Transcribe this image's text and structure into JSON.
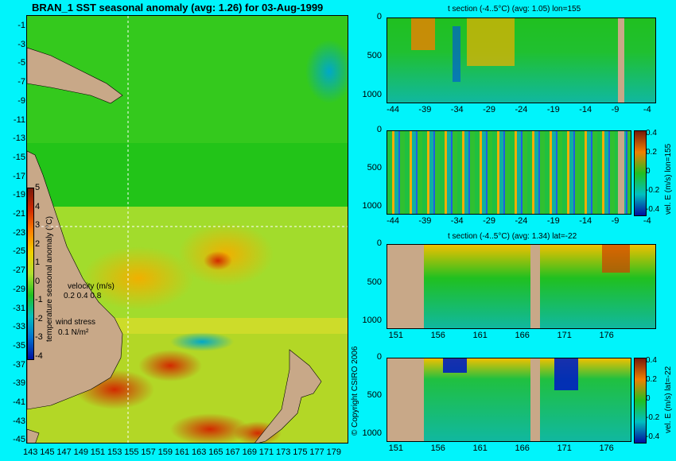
{
  "main_map": {
    "title": "BRAN_1  SST seasonal anomaly (avg: 1.26) for 03-Aug-1999",
    "lat_ticks": [
      "-1",
      "-3",
      "-5",
      "-7",
      "-9",
      "-11",
      "-13",
      "-15",
      "-17",
      "-19",
      "-21",
      "-23",
      "-25",
      "-27",
      "-29",
      "-31",
      "-33",
      "-35",
      "-37",
      "-39",
      "-41",
      "-43",
      "-45"
    ],
    "lon_ticks": [
      "143",
      "145",
      "147",
      "149",
      "151",
      "153",
      "155",
      "157",
      "159",
      "161",
      "163",
      "165",
      "167",
      "169",
      "171",
      "173",
      "175",
      "177",
      "179"
    ],
    "colorbar_ticks": [
      "5",
      "4",
      "3",
      "2",
      "1",
      "0",
      "-1",
      "-2",
      "-3",
      "-4"
    ],
    "colorbar_label": "temperature seasonal anomaly (°C)",
    "velocity_label": "velocity (m/s)",
    "velocity_scale": "0.2 0.4 0.8",
    "wind_label": "wind stress",
    "wind_scale": "0.1 N/m²"
  },
  "panels": [
    {
      "title": "t section (-4..5°C) (avg: 1.05) lon=155",
      "y_ticks": [
        "0",
        "500",
        "1000"
      ],
      "x_ticks": [
        "-44",
        "-39",
        "-34",
        "-29",
        "-24",
        "-19",
        "-14",
        "-9",
        "-4"
      ]
    },
    {
      "title": "",
      "y_ticks": [
        "0",
        "500",
        "1000"
      ],
      "x_ticks": [
        "-44",
        "-39",
        "-34",
        "-29",
        "-24",
        "-19",
        "-14",
        "-9",
        "-4"
      ],
      "cbar_label": "vel. E (m/s) lon=155",
      "cbar_ticks": [
        "0.4",
        "0.2",
        "0",
        "-0.2",
        "-0.4"
      ]
    },
    {
      "title": "t section (-4..5°C) (avg: 1.34) lat=-22",
      "y_ticks": [
        "0",
        "500",
        "1000"
      ],
      "x_ticks": [
        "151",
        "156",
        "161",
        "166",
        "171",
        "176"
      ]
    },
    {
      "title": "",
      "y_ticks": [
        "0",
        "500",
        "1000"
      ],
      "x_ticks": [
        "151",
        "156",
        "161",
        "166",
        "171",
        "176"
      ],
      "cbar_label": "vel. E (m/s) lat=-22",
      "cbar_ticks": [
        "0.4",
        "0.2",
        "0",
        "-0.2",
        "-0.4"
      ]
    }
  ],
  "copyright": "© Copyright CSIRO 2006",
  "colors": {
    "background": "#00f4fb",
    "land": "#c8a888"
  }
}
